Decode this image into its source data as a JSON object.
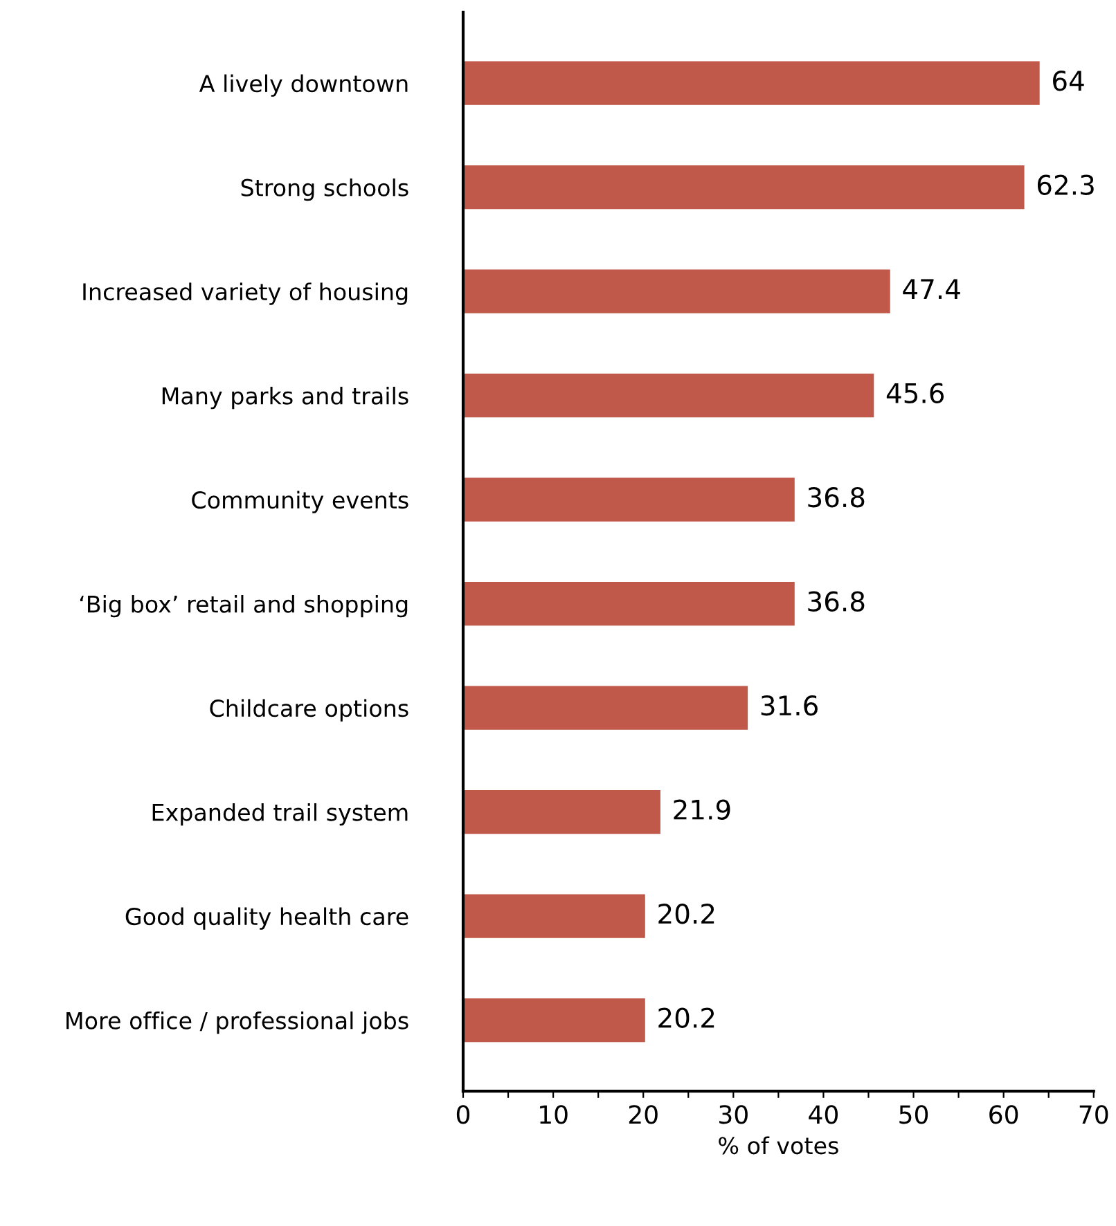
{
  "chart_data": {
    "type": "bar",
    "orientation": "horizontal",
    "xlabel": "% of votes",
    "categories": [
      "A lively downtown",
      "Strong schools",
      "Increased variety of housing",
      "Many parks and trails",
      "Community events",
      "‘Big box’ retail and shopping",
      "Childcare options",
      "Expanded trail system",
      "Good quality health care",
      "More office / professional jobs"
    ],
    "values": [
      64,
      62.3,
      47.4,
      45.6,
      36.8,
      36.8,
      31.6,
      21.9,
      20.2,
      20.2
    ],
    "color": "#c0594a",
    "data_labels": true,
    "grid": false,
    "legend": false,
    "xlim": [
      0,
      70
    ],
    "xticks": [
      0,
      {
        "value": 5,
        "label": null
      },
      10,
      {
        "value": 15,
        "label": null
      },
      20,
      {
        "value": 25,
        "label": null
      },
      30,
      {
        "value": 35,
        "label": null
      },
      40,
      {
        "value": 45,
        "label": null
      },
      50,
      {
        "value": 55,
        "label": null
      },
      60,
      {
        "value": 65,
        "label": null
      },
      70
    ]
  }
}
